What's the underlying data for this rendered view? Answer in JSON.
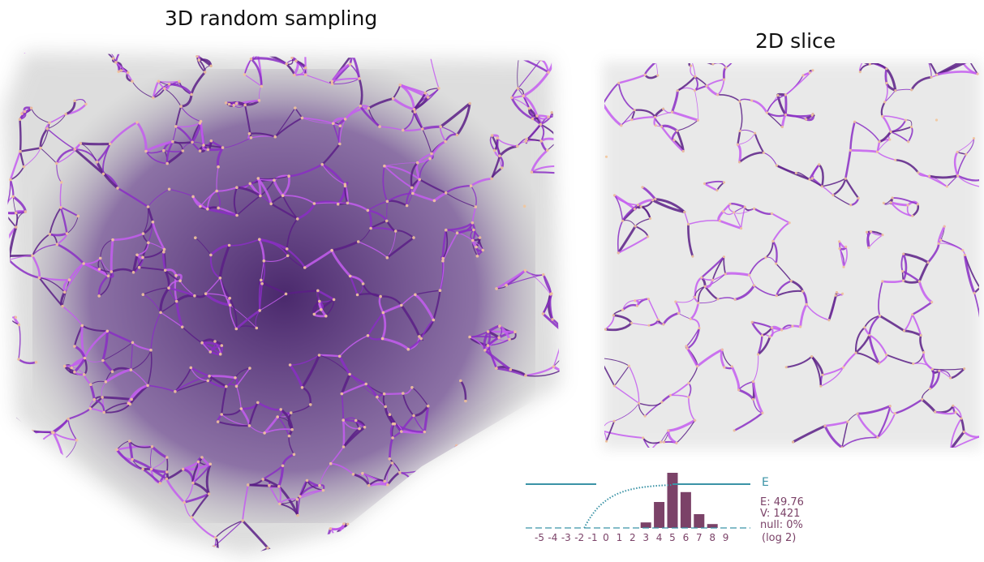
{
  "titles": {
    "three_d": "3D random sampling",
    "two_d": "2D slice"
  },
  "colors": {
    "strand_dark": "#5a1f86",
    "strand_mid": "#8a2ec4",
    "strand_light": "#c45df0",
    "node": "#f2c79c",
    "haze": "#9a9a9a",
    "bar": "#7b4268",
    "curve": "#3b93a6",
    "legend_text": "#7b4268"
  },
  "histogram": {
    "curve_label": "E",
    "stats": [
      "E: 49.76",
      "V: 1421",
      "null: 0%"
    ],
    "scale_label": "(log 2)",
    "chart_data": {
      "type": "bar",
      "categories": [
        "-5",
        "-4",
        "-3",
        "-2",
        "-1",
        "0",
        "1",
        "2",
        "3",
        "4",
        "5",
        "6",
        "7",
        "8",
        "9"
      ],
      "values": [
        0,
        0,
        0,
        0,
        0,
        0,
        0,
        0,
        0.1,
        0.47,
        1.0,
        0.65,
        0.25,
        0.07,
        0
      ],
      "xlabel": "(log 2)",
      "cumulative_curve": {
        "start_category": "-2",
        "saturates_at": "5"
      }
    }
  }
}
